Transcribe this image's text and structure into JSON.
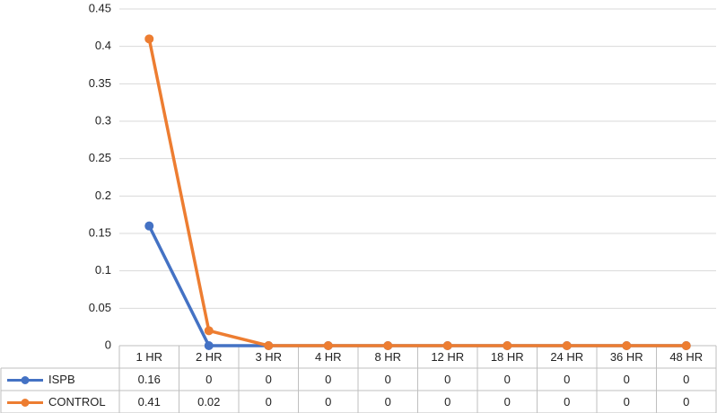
{
  "chart_data": {
    "type": "line",
    "categories": [
      "1 HR",
      "2 HR",
      "3 HR",
      "4 HR",
      "8 HR",
      "12 HR",
      "18 HR",
      "24 HR",
      "36 HR",
      "48 HR"
    ],
    "series": [
      {
        "name": "ISPB",
        "color": "#4472c4",
        "values": [
          0.16,
          0,
          0,
          0,
          0,
          0,
          0,
          0,
          0,
          0
        ]
      },
      {
        "name": "CONTROL",
        "color": "#ed7d31",
        "values": [
          0.41,
          0.02,
          0,
          0,
          0,
          0,
          0,
          0,
          0,
          0
        ]
      }
    ],
    "ylim": [
      0,
      0.45
    ],
    "yticks": [
      0,
      0.05,
      0.1,
      0.15,
      0.2,
      0.25,
      0.3,
      0.35,
      0.4,
      0.45
    ],
    "grid": true,
    "data_table": true
  }
}
